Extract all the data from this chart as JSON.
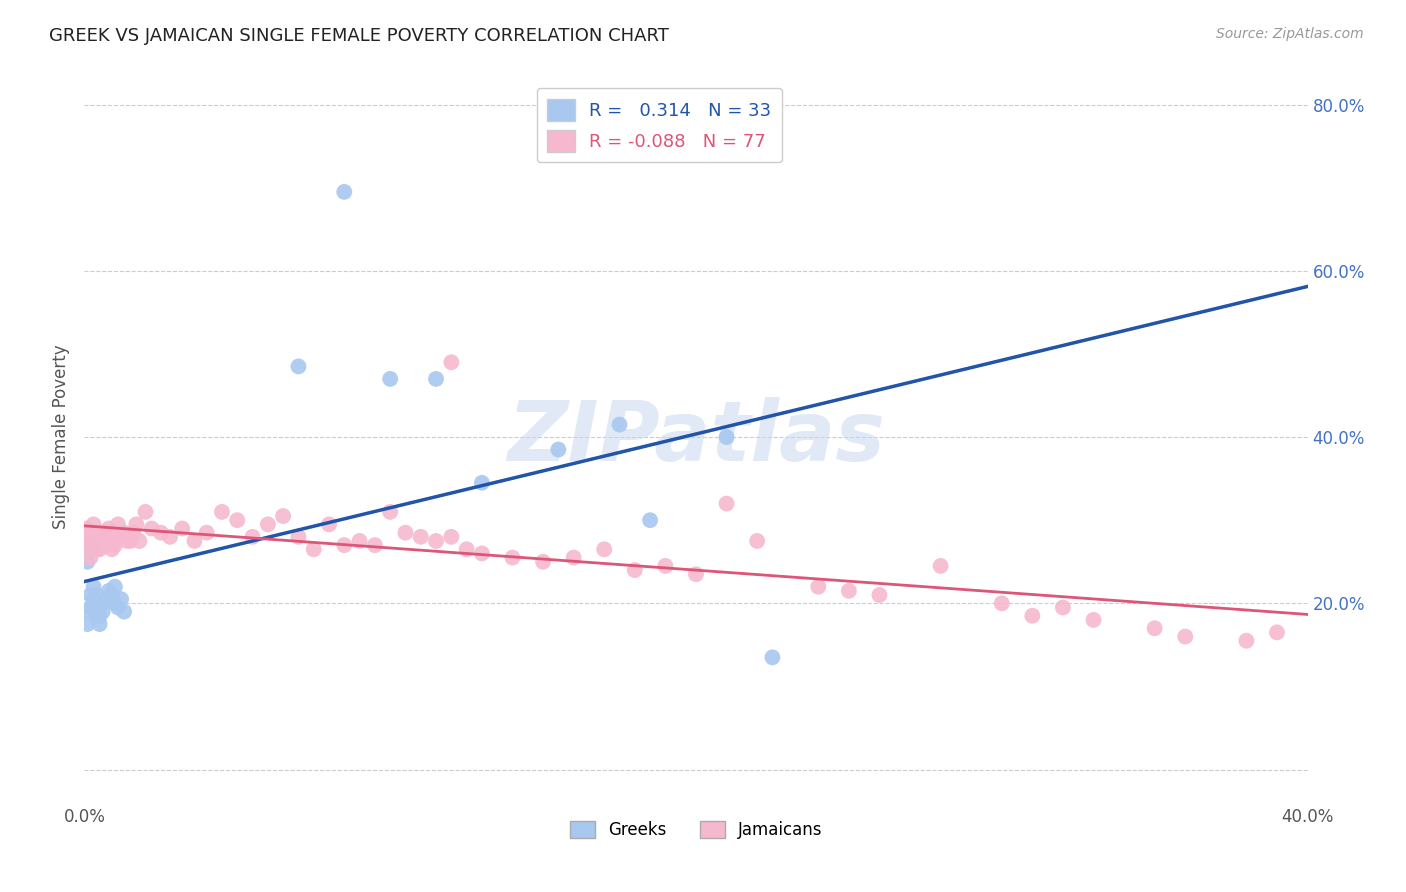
{
  "title": "GREEK VS JAMAICAN SINGLE FEMALE POVERTY CORRELATION CHART",
  "source": "Source: ZipAtlas.com",
  "ylabel": "Single Female Poverty",
  "xmin": 0.0,
  "xmax": 0.4,
  "ymin": -0.04,
  "ymax": 0.84,
  "greek_R": 0.314,
  "greek_N": 33,
  "jamaican_R": -0.088,
  "jamaican_N": 77,
  "blue_color": "#A8C8F0",
  "pink_color": "#F5B8CE",
  "blue_line_color": "#2255AA",
  "pink_line_color": "#DD5577",
  "dashed_line_color": "#99BBDD",
  "watermark": "ZIPatlas",
  "greek_x": [
    0.001,
    0.001,
    0.002,
    0.002,
    0.003,
    0.003,
    0.004,
    0.004,
    0.005,
    0.005,
    0.006,
    0.006,
    0.007,
    0.008,
    0.009,
    0.01,
    0.01,
    0.011,
    0.012,
    0.013,
    0.001,
    0.002,
    0.003,
    0.07,
    0.085,
    0.1,
    0.115,
    0.13,
    0.155,
    0.175,
    0.185,
    0.21,
    0.225
  ],
  "greek_y": [
    0.19,
    0.175,
    0.21,
    0.195,
    0.22,
    0.205,
    0.185,
    0.21,
    0.175,
    0.185,
    0.19,
    0.2,
    0.205,
    0.215,
    0.21,
    0.2,
    0.22,
    0.195,
    0.205,
    0.19,
    0.25,
    0.265,
    0.27,
    0.485,
    0.695,
    0.47,
    0.47,
    0.345,
    0.385,
    0.415,
    0.3,
    0.4,
    0.135
  ],
  "jamaican_x": [
    0.001,
    0.001,
    0.002,
    0.002,
    0.002,
    0.003,
    0.003,
    0.003,
    0.004,
    0.004,
    0.005,
    0.005,
    0.006,
    0.006,
    0.007,
    0.007,
    0.008,
    0.008,
    0.009,
    0.009,
    0.01,
    0.01,
    0.011,
    0.012,
    0.013,
    0.014,
    0.015,
    0.016,
    0.017,
    0.018,
    0.02,
    0.022,
    0.025,
    0.028,
    0.032,
    0.036,
    0.04,
    0.045,
    0.05,
    0.055,
    0.06,
    0.065,
    0.07,
    0.075,
    0.08,
    0.085,
    0.09,
    0.095,
    0.1,
    0.105,
    0.11,
    0.115,
    0.12,
    0.125,
    0.13,
    0.14,
    0.15,
    0.16,
    0.17,
    0.18,
    0.19,
    0.2,
    0.21,
    0.22,
    0.24,
    0.25,
    0.26,
    0.28,
    0.3,
    0.31,
    0.32,
    0.33,
    0.35,
    0.36,
    0.38,
    0.39,
    0.12
  ],
  "jamaican_y": [
    0.27,
    0.29,
    0.275,
    0.255,
    0.285,
    0.28,
    0.265,
    0.295,
    0.275,
    0.265,
    0.28,
    0.265,
    0.27,
    0.285,
    0.27,
    0.285,
    0.275,
    0.29,
    0.28,
    0.265,
    0.275,
    0.27,
    0.295,
    0.28,
    0.285,
    0.275,
    0.275,
    0.285,
    0.295,
    0.275,
    0.31,
    0.29,
    0.285,
    0.28,
    0.29,
    0.275,
    0.285,
    0.31,
    0.3,
    0.28,
    0.295,
    0.305,
    0.28,
    0.265,
    0.295,
    0.27,
    0.275,
    0.27,
    0.31,
    0.285,
    0.28,
    0.275,
    0.28,
    0.265,
    0.26,
    0.255,
    0.25,
    0.255,
    0.265,
    0.24,
    0.245,
    0.235,
    0.32,
    0.275,
    0.22,
    0.215,
    0.21,
    0.245,
    0.2,
    0.185,
    0.195,
    0.18,
    0.17,
    0.16,
    0.155,
    0.165,
    0.49
  ]
}
